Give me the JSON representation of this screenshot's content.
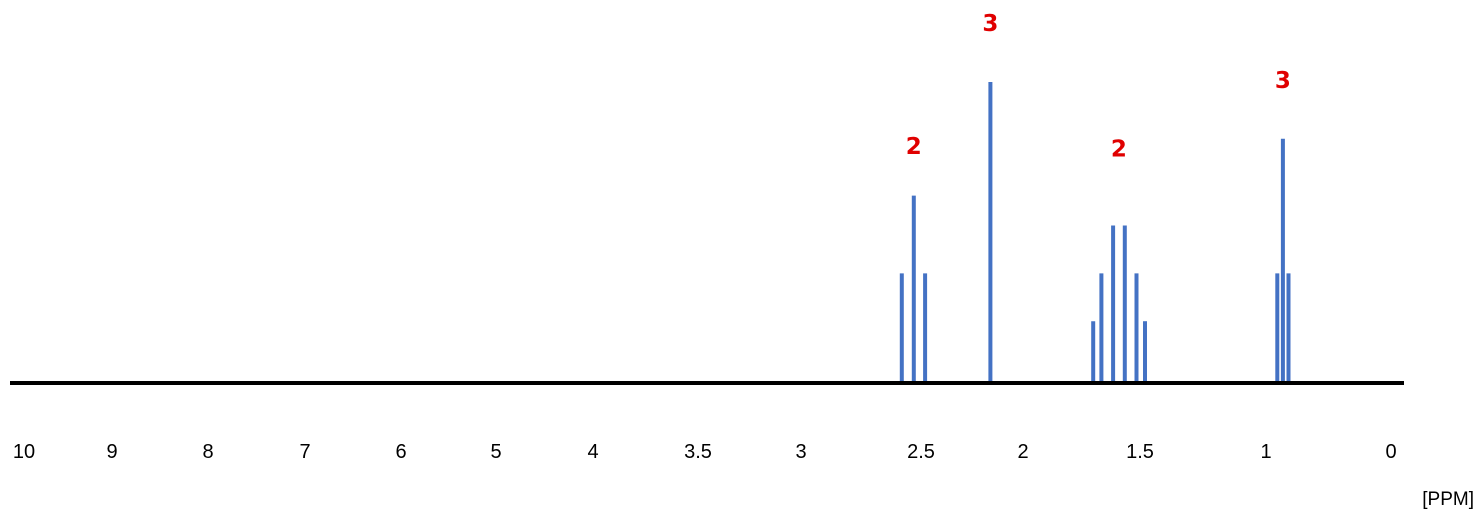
{
  "chart_data": {
    "type": "bar",
    "title": "",
    "xlabel": "[PPM]",
    "ylabel": "",
    "x_ticks": [
      "10",
      "9",
      "8",
      "7",
      "6",
      "5",
      "4",
      "3.5",
      "3",
      "2.5",
      "2",
      "1.5",
      "1",
      "0"
    ],
    "x_tick_values": [
      10,
      9,
      8,
      7,
      6,
      5,
      4,
      3.5,
      3,
      2.5,
      2,
      1.5,
      1,
      0
    ],
    "x_direction": "descending",
    "ylim": [
      0,
      100
    ],
    "grid": false,
    "legend": "none",
    "series": [
      {
        "values": [
          {
            "ppm": 2.58,
            "height": 36
          },
          {
            "ppm": 2.53,
            "height": 62
          },
          {
            "ppm": 2.48,
            "height": 36
          },
          {
            "ppm": 2.16,
            "height": 100
          },
          {
            "ppm": 1.7,
            "height": 20
          },
          {
            "ppm": 1.665,
            "height": 36
          },
          {
            "ppm": 1.615,
            "height": 52
          },
          {
            "ppm": 1.565,
            "height": 52
          },
          {
            "ppm": 1.515,
            "height": 36
          },
          {
            "ppm": 1.48,
            "height": 20
          },
          {
            "ppm": 0.91,
            "height": 36
          },
          {
            "ppm": 0.865,
            "height": 81
          },
          {
            "ppm": 0.82,
            "height": 36
          }
        ]
      }
    ],
    "annotations": [
      {
        "text": "2",
        "ppm": 2.53,
        "height": 76
      },
      {
        "text": "3",
        "ppm": 2.16,
        "height": 117
      },
      {
        "text": "2",
        "ppm": 1.59,
        "height": 75
      },
      {
        "text": "3",
        "ppm": 0.865,
        "height": 98
      }
    ]
  },
  "colors": {
    "peak": "#4472c4",
    "baseline": "#000000",
    "annotation": "#e00000",
    "background": "#ffffff"
  }
}
